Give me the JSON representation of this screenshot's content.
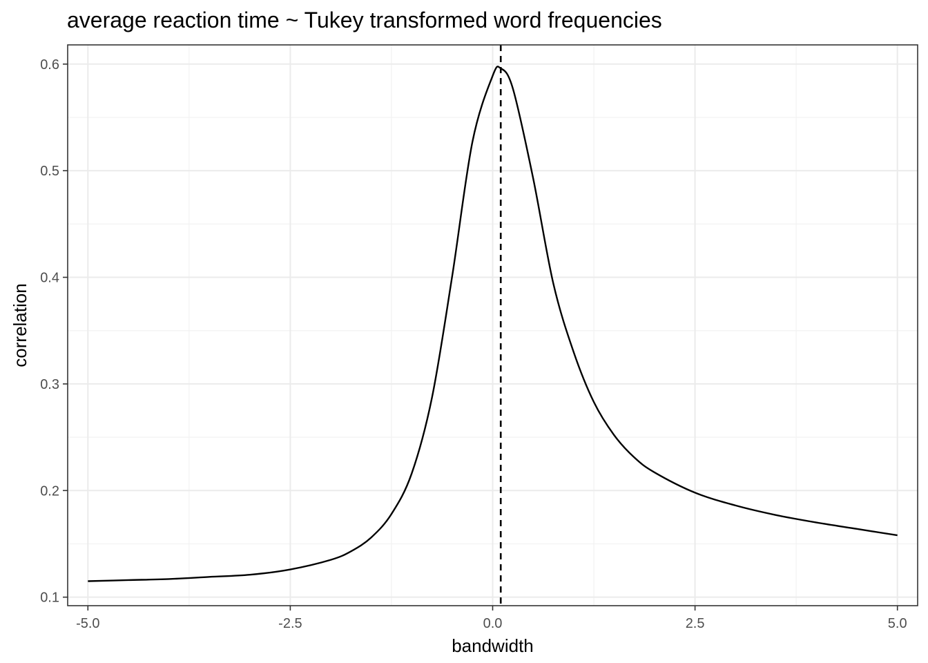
{
  "chart_data": {
    "type": "line",
    "title": "average reaction time ~ Tukey transformed word frequencies",
    "xlabel": "bandwidth",
    "ylabel": "correlation",
    "xlim": [
      -5.25,
      5.25
    ],
    "ylim": [
      0.092,
      0.618
    ],
    "x_ticks": [
      -5.0,
      -2.5,
      0.0,
      2.5,
      5.0
    ],
    "x_tick_labels": [
      "-5.0",
      "-2.5",
      "0.0",
      "2.5",
      "5.0"
    ],
    "y_ticks": [
      0.1,
      0.2,
      0.3,
      0.4,
      0.5,
      0.6
    ],
    "y_tick_labels": [
      "0.1",
      "0.2",
      "0.3",
      "0.4",
      "0.5",
      "0.6"
    ],
    "grid": true,
    "legend": "none",
    "reference_line": {
      "orientation": "vertical",
      "x": 0.1,
      "style": "dashed",
      "color": "#000000"
    },
    "series": [
      {
        "color": "#000000",
        "x": [
          -5.0,
          -4.5,
          -4.0,
          -3.5,
          -3.0,
          -2.5,
          -2.0,
          -1.75,
          -1.5,
          -1.25,
          -1.0,
          -0.75,
          -0.5,
          -0.25,
          0.0,
          0.1,
          0.25,
          0.5,
          0.75,
          1.0,
          1.25,
          1.5,
          1.75,
          2.0,
          2.5,
          3.0,
          3.5,
          4.0,
          4.5,
          5.0
        ],
        "y": [
          0.115,
          0.116,
          0.117,
          0.119,
          0.121,
          0.126,
          0.135,
          0.143,
          0.156,
          0.178,
          0.216,
          0.287,
          0.401,
          0.527,
          0.589,
          0.596,
          0.577,
          0.493,
          0.394,
          0.33,
          0.283,
          0.252,
          0.231,
          0.217,
          0.198,
          0.186,
          0.177,
          0.17,
          0.164,
          0.158
        ]
      }
    ]
  }
}
